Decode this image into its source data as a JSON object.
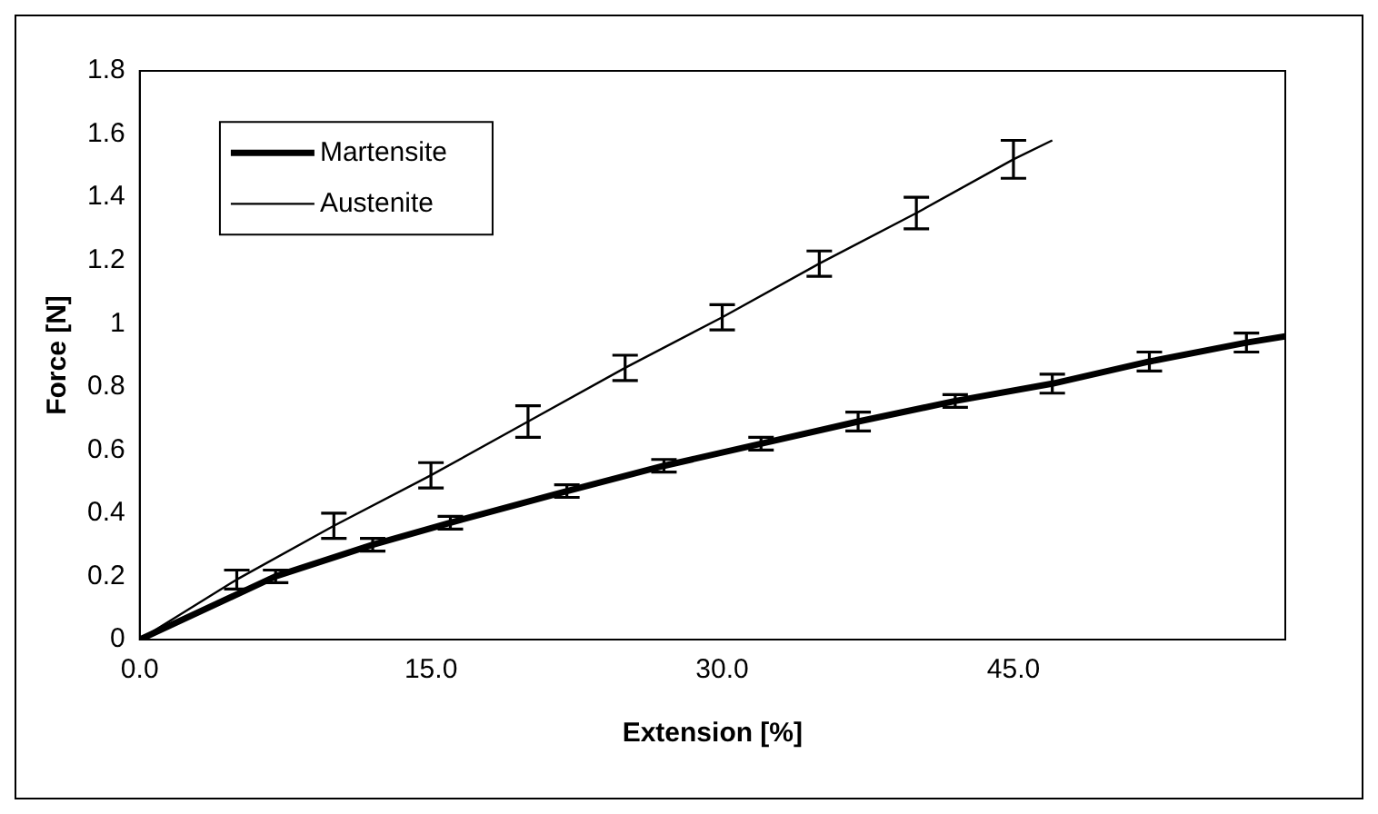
{
  "chart_data": {
    "type": "line",
    "xlabel": "Extension [%]",
    "ylabel": "Force [N]",
    "xlim": [
      0,
      59
    ],
    "xticks": [
      {
        "value": 0,
        "label": "0.0"
      },
      {
        "value": 15,
        "label": "15.0"
      },
      {
        "value": 30,
        "label": "30.0"
      },
      {
        "value": 45,
        "label": "45.0"
      }
    ],
    "ylim": [
      0,
      1.8
    ],
    "yticks": [
      0,
      0.2,
      0.4,
      0.6,
      0.8,
      1,
      1.2,
      1.4,
      1.6,
      1.8
    ],
    "grid": false,
    "legend": "top left",
    "series": [
      {
        "name": "Martensite",
        "color": "#000000",
        "x": [
          0,
          7,
          12,
          16,
          22,
          27,
          32,
          37,
          42,
          47,
          52,
          57,
          59
        ],
        "values": [
          0,
          0.2,
          0.3,
          0.37,
          0.47,
          0.55,
          0.62,
          0.69,
          0.755,
          0.81,
          0.88,
          0.94,
          0.96
        ],
        "errors": [
          null,
          0.02,
          0.02,
          0.02,
          0.02,
          0.02,
          0.02,
          0.03,
          0.02,
          0.03,
          0.03,
          0.03,
          null
        ]
      },
      {
        "name": "Austenite",
        "color": "#000000",
        "x": [
          0,
          5,
          10,
          15,
          20,
          25,
          30,
          35,
          40,
          45,
          47
        ],
        "values": [
          0,
          0.19,
          0.36,
          0.52,
          0.69,
          0.86,
          1.02,
          1.19,
          1.35,
          1.52,
          1.58
        ],
        "errors": [
          null,
          0.03,
          0.04,
          0.04,
          0.05,
          0.04,
          0.04,
          0.04,
          0.05,
          0.06,
          null
        ]
      }
    ]
  }
}
